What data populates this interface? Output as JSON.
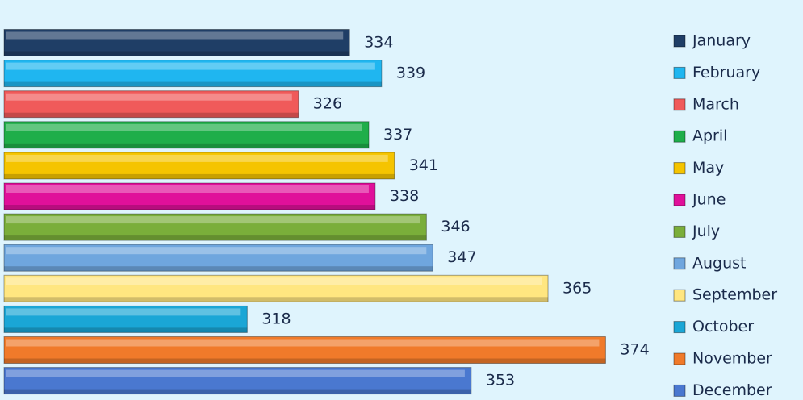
{
  "chart_data": {
    "type": "bar",
    "orientation": "horizontal",
    "categories": [
      "January",
      "February",
      "March",
      "April",
      "May",
      "June",
      "July",
      "August",
      "September",
      "October",
      "November",
      "December"
    ],
    "values": [
      334,
      339,
      326,
      337,
      341,
      338,
      346,
      347,
      365,
      318,
      374,
      353
    ],
    "colors": [
      "#1f3e66",
      "#1fb6f0",
      "#f05a5a",
      "#1fae4a",
      "#f5c400",
      "#e0109a",
      "#7aae3a",
      "#6fa6de",
      "#ffe680",
      "#1aa6d6",
      "#f07a2a",
      "#4a78d0"
    ],
    "xlim": [
      280,
      380
    ],
    "legend": "right"
  }
}
